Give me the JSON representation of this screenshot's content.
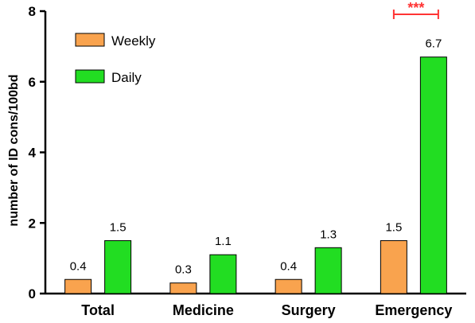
{
  "chart_data": {
    "type": "bar",
    "ylabel": "number of ID cons/100bd",
    "ylim": [
      0,
      8
    ],
    "yticks": [
      0,
      2,
      4,
      6,
      8
    ],
    "categories": [
      "Total",
      "Medicine",
      "Surgery",
      "Emergency"
    ],
    "series": [
      {
        "name": "Weekly",
        "values": [
          0.4,
          0.3,
          0.4,
          1.5
        ],
        "labels": [
          "0.4",
          "0.3",
          "0.4",
          "1.5"
        ],
        "color": "#F9A34E"
      },
      {
        "name": "Daily",
        "values": [
          1.5,
          1.1,
          1.3,
          6.7
        ],
        "labels": [
          "1.5",
          "1.1",
          "1.3",
          "6.7"
        ],
        "color": "#22DD22"
      }
    ],
    "legend": "top-left",
    "grid": false,
    "annotation": {
      "text": "***",
      "category": "Emergency",
      "color": "#FF3333"
    }
  }
}
